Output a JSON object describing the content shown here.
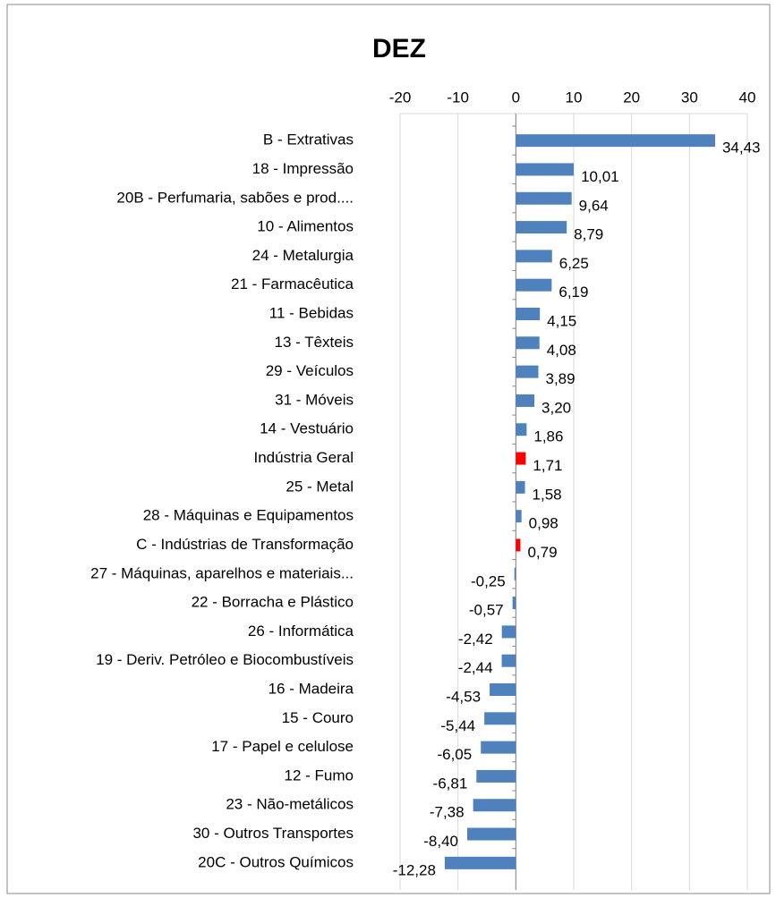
{
  "chart_data": {
    "type": "barh",
    "title": "DEZ",
    "categories": [
      "B - Extrativas",
      "18 - Impressão",
      "20B - Perfumaria, sabões e prod....",
      "10 - Alimentos",
      "24 - Metalurgia",
      "21 - Farmacêutica",
      "11 - Bebidas",
      "13 - Têxteis",
      "29 - Veículos ",
      "31 - Móveis",
      "14 - Vestuário",
      "Indústria Geral",
      "25 - Metal",
      "28 - Máquinas e Equipamentos",
      "C - Indústrias de Transformação",
      "27 - Máquinas, aparelhos e materiais...",
      "22 - Borracha e Plástico",
      "26 - Informática",
      "19 - Deriv. Petróleo e Biocombustíveis",
      "16 - Madeira",
      "15 - Couro",
      "17 - Papel e celulose",
      "12 - Fumo",
      "23 - Não-metálicos",
      "30 - Outros Transportes",
      "20C - Outros Químicos"
    ],
    "values": [
      34.43,
      10.01,
      9.64,
      8.79,
      6.25,
      6.19,
      4.15,
      4.08,
      3.89,
      3.2,
      1.86,
      1.71,
      1.58,
      0.98,
      0.79,
      -0.25,
      -0.57,
      -2.42,
      -2.44,
      -4.53,
      -5.44,
      -6.05,
      -6.81,
      -7.38,
      -8.4,
      -12.28
    ],
    "value_labels": [
      "34,43",
      "10,01",
      "9,64",
      "8,79",
      "6,25",
      "6,19",
      "4,15",
      "4,08",
      "3,89",
      "3,20",
      "1,86",
      "1,71",
      "1,58",
      "0,98",
      "0,79",
      "-0,25",
      "-0,57",
      "-2,42",
      "-2,44",
      "-4,53",
      "-5,44",
      "-6,05",
      "-6,81",
      "-7,38",
      "-8,40",
      "-12,28"
    ],
    "colors": [
      "#4f81bd",
      "#4f81bd",
      "#4f81bd",
      "#4f81bd",
      "#4f81bd",
      "#4f81bd",
      "#4f81bd",
      "#4f81bd",
      "#4f81bd",
      "#4f81bd",
      "#4f81bd",
      "#ff0000",
      "#4f81bd",
      "#4f81bd",
      "#ff0000",
      "#4f81bd",
      "#4f81bd",
      "#4f81bd",
      "#4f81bd",
      "#4f81bd",
      "#4f81bd",
      "#4f81bd",
      "#4f81bd",
      "#4f81bd",
      "#4f81bd",
      "#4f81bd"
    ],
    "xlim": [
      -20,
      40
    ],
    "xticks": [
      -20,
      -10,
      0,
      10,
      20,
      30,
      40
    ],
    "grid": true
  }
}
